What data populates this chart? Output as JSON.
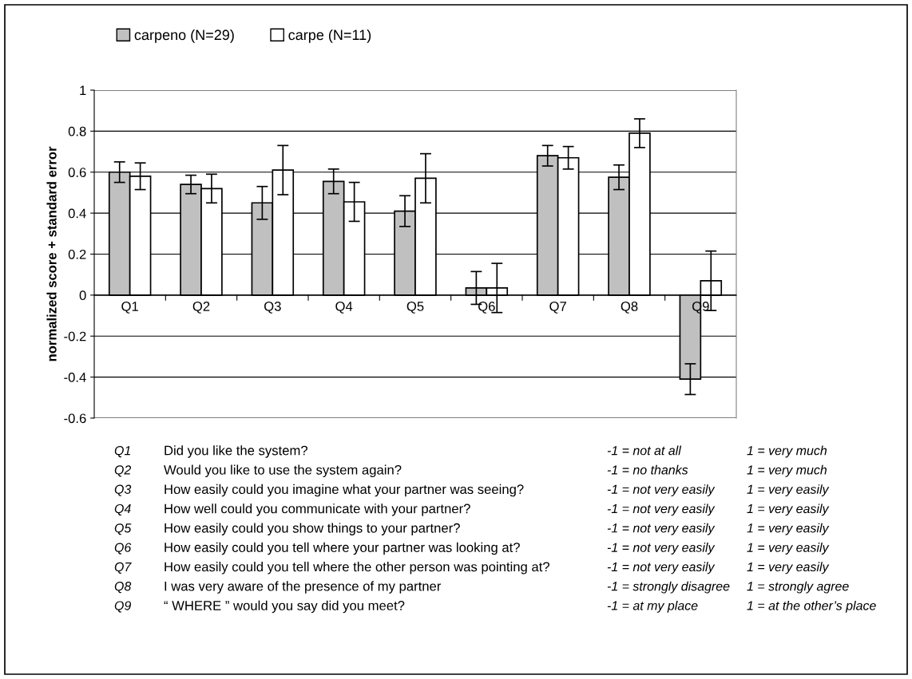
{
  "chart_data": {
    "type": "bar",
    "ylabel": "normalized score + standard error",
    "categories": [
      "Q1",
      "Q2",
      "Q3",
      "Q4",
      "Q5",
      "Q6",
      "Q7",
      "Q8",
      "Q9"
    ],
    "series": [
      {
        "name": "carpeno (N=29)",
        "color": "#c0c0c0",
        "values": [
          0.6,
          0.54,
          0.45,
          0.555,
          0.41,
          0.035,
          0.68,
          0.575,
          -0.41
        ],
        "errors": [
          0.05,
          0.045,
          0.08,
          0.06,
          0.075,
          0.08,
          0.05,
          0.06,
          0.075
        ]
      },
      {
        "name": "carpe (N=11)",
        "color": "#ffffff",
        "values": [
          0.58,
          0.52,
          0.61,
          0.455,
          0.57,
          0.035,
          0.67,
          0.79,
          0.07
        ],
        "errors": [
          0.065,
          0.07,
          0.12,
          0.095,
          0.12,
          0.12,
          0.055,
          0.07,
          0.145
        ]
      }
    ],
    "ylim": [
      -0.6,
      1
    ],
    "yticks": [
      -0.6,
      -0.4,
      -0.2,
      0,
      0.2,
      0.4,
      0.6,
      0.8,
      1
    ],
    "grid": "y",
    "legend": "top left",
    "annotations": [
      "Q1",
      "Did you like the system?",
      "-1 = not at all",
      "1 = very much",
      "Q2",
      "Would you like to use the system again?",
      "-1 = no thanks",
      "1 = very much",
      "Q3",
      "How easily could you imagine what your partner was seeing?",
      "-1 = not very easily",
      "1 = very easily",
      "Q4",
      "How well could you communicate with your partner?",
      "-1 = not very easily",
      "1 = very easily",
      "Q5",
      "How easily could you show things to your partner?",
      "-1 = not very easily",
      "1 = very easily",
      "Q6",
      "How easily could you tell where your partner was looking at?",
      "-1 = not very easily",
      "1 = very easily",
      "Q7",
      "How easily could you tell where the other person was pointing at?",
      "-1 = not very easily",
      "1 = very easily",
      "Q8",
      "I was very aware of the presence of my partner",
      "-1 = strongly disagree",
      "1 = strongly agree",
      "Q9",
      "“ WHERE ” would you say did you meet?",
      "-1 = at my place",
      "1 = at the other’s place"
    ]
  }
}
